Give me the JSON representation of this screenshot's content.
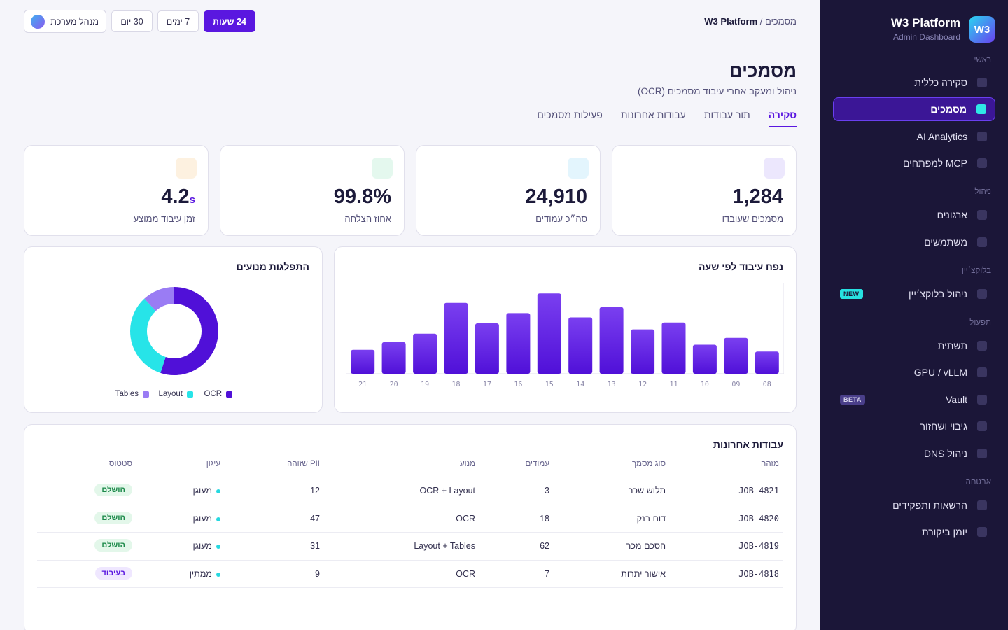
{
  "brand": {
    "logo": "W3",
    "name": "W3 Platform",
    "sub": "Admin Dashboard"
  },
  "sidebar": {
    "sections": [
      {
        "label": "ראשי",
        "items": [
          {
            "label": "סקירה כללית"
          },
          {
            "label": "מסמכים",
            "active": true
          },
          {
            "label": "AI Analytics"
          },
          {
            "label": "MCP למפתחים"
          }
        ]
      },
      {
        "label": "ניהול",
        "items": [
          {
            "label": "ארגונים"
          },
          {
            "label": "משתמשים"
          }
        ]
      },
      {
        "label": "בלוקצ׳יין",
        "items": [
          {
            "label": "ניהול בלוקצ׳יין",
            "badge": "NEW"
          }
        ]
      },
      {
        "label": "תפעול",
        "items": [
          {
            "label": "תשתית"
          },
          {
            "label": "GPU / vLLM"
          },
          {
            "label": "Vault",
            "badge": "BETA"
          },
          {
            "label": "גיבוי ושחזור"
          },
          {
            "label": "ניהול DNS"
          }
        ]
      },
      {
        "label": "אבטחה",
        "items": [
          {
            "label": "הרשאות ותפקידים"
          },
          {
            "label": "יומן ביקורת"
          }
        ]
      }
    ]
  },
  "header": {
    "breadcrumb_current": "מסמכים",
    "breadcrumb_sep": " / ",
    "breadcrumb_root": "W3 Platform",
    "ranges": [
      "24 שעות",
      "7 ימים",
      "30 יום"
    ],
    "active_range": "24 שעות",
    "user_label": "מנהל מערכת"
  },
  "page": {
    "title": "מסמכים",
    "subtitle": "ניהול ומעקב אחרי עיבוד מסמכים (OCR)",
    "tabs": [
      "סקירה",
      "תור עבודות",
      "עבודות אחרונות",
      "פעילות מסמכים"
    ],
    "active_tab": "סקירה"
  },
  "kpis": [
    {
      "value": "1,284",
      "unit": "",
      "label": "מסמכים שעובדו",
      "icon": "document-icon",
      "color": "#ece7fd"
    },
    {
      "value": "24,910",
      "unit": "",
      "label": "סה״כ עמודים",
      "icon": "pages-icon",
      "color": "#e3f5fd"
    },
    {
      "value": "99.8%",
      "unit": "",
      "label": "אחוז הצלחה",
      "icon": "success-icon",
      "color": "#e4f8ee"
    },
    {
      "value": "4.2",
      "unit": "s",
      "label": "זמן עיבוד ממוצע",
      "icon": "clock-icon",
      "color": "#fdf1e0"
    }
  ],
  "bar_card": {
    "title": "נפח עיבוד לפי שעה"
  },
  "donut_card": {
    "title": "התפלגות מנועים"
  },
  "chart_data": [
    {
      "type": "bar",
      "title": "נפח עיבוד לפי שעה",
      "categories": [
        "08",
        "09",
        "10",
        "11",
        "12",
        "13",
        "14",
        "15",
        "16",
        "17",
        "18",
        "19",
        "20",
        "21"
      ],
      "values": [
        26,
        42,
        34,
        60,
        52,
        78,
        66,
        94,
        71,
        59,
        83,
        47,
        37,
        28
      ],
      "ylim": [
        0,
        100
      ],
      "color": "#5a17e0"
    },
    {
      "type": "pie",
      "title": "התפלגות מנועים",
      "labels": [
        "OCR",
        "Layout",
        "Tables"
      ],
      "values": [
        55,
        33,
        12
      ],
      "colors": [
        "#5010d8",
        "#27e4e8",
        "#9a7cf4"
      ]
    }
  ],
  "jobs": {
    "title": "עבודות אחרונות",
    "columns": [
      "מזהה",
      "סוג מסמך",
      "עמודים",
      "מנוע",
      "PII שזוהה",
      "עיגון",
      "סטטוס"
    ],
    "rows": [
      {
        "id": "JOB-4821",
        "type": "תלוש שכר",
        "pages": "3",
        "engine": "OCR + Layout",
        "pii": "12",
        "anchor": "מעוגן",
        "status": "הושלם",
        "status_kind": "done"
      },
      {
        "id": "JOB-4820",
        "type": "דוח בנק",
        "pages": "18",
        "engine": "OCR",
        "pii": "47",
        "anchor": "מעוגן",
        "status": "הושלם",
        "status_kind": "done"
      },
      {
        "id": "JOB-4819",
        "type": "הסכם מכר",
        "pages": "62",
        "engine": "Layout + Tables",
        "pii": "31",
        "anchor": "מעוגן",
        "status": "הושלם",
        "status_kind": "done"
      },
      {
        "id": "JOB-4818",
        "type": "אישור יתרות",
        "pages": "7",
        "engine": "OCR",
        "pii": "9",
        "anchor": "ממתין",
        "status": "בעיבוד",
        "status_kind": "proc"
      }
    ]
  }
}
